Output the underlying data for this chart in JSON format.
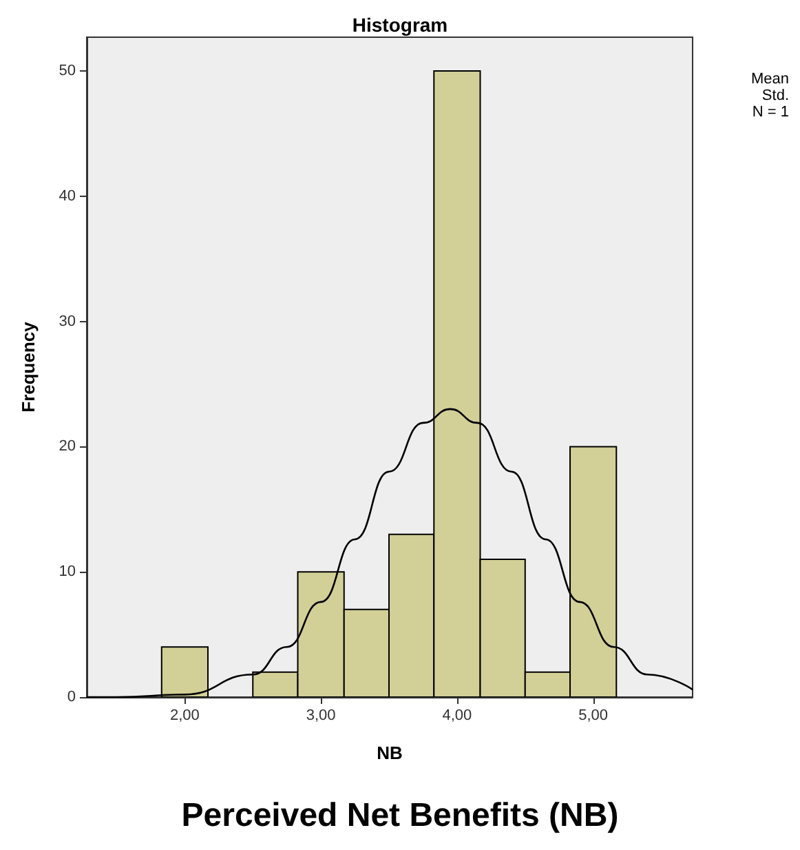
{
  "chart_data": {
    "type": "histogram",
    "title": "Histogram",
    "subtitle": "Perceived Net Benefits (NB)",
    "xlabel": "NB",
    "ylabel": "Frequency",
    "annotations": [
      "Mean",
      "Std.",
      "N = 1"
    ],
    "bins": [
      1.83,
      2.17,
      2.5,
      2.83,
      3.17,
      3.5,
      3.83,
      4.17,
      4.5,
      4.83,
      5.17
    ],
    "values": [
      4,
      0,
      2,
      10,
      7,
      13,
      50,
      11,
      2,
      20
    ],
    "color": "#d2cf97",
    "series": [
      {
        "type": "line",
        "color": "#000000",
        "x": [
          1.28,
          1.5,
          2.0,
          2.5,
          2.75,
          3.0,
          3.25,
          3.5,
          3.75,
          3.95,
          4.15,
          4.4,
          4.65,
          4.9,
          5.15,
          5.4,
          5.73
        ],
        "values": [
          0,
          0,
          0.2,
          1.8,
          4.0,
          7.6,
          12.6,
          18.0,
          21.9,
          23,
          21.9,
          18.0,
          12.6,
          7.6,
          4.0,
          1.8,
          0.6
        ]
      }
    ],
    "xlim": [
      1.28,
      5.73
    ],
    "xticks": [
      {
        "value": 2,
        "label": "2,00"
      },
      {
        "value": 3,
        "label": "3,00"
      },
      {
        "value": 4,
        "label": "4,00"
      },
      {
        "value": 5,
        "label": "5,00"
      }
    ],
    "ylim": [
      0,
      52.7
    ],
    "yticks": [
      0,
      10,
      20,
      30,
      40,
      50
    ],
    "grid": false,
    "legend": false,
    "marker": "none",
    "line_style": "solid"
  }
}
